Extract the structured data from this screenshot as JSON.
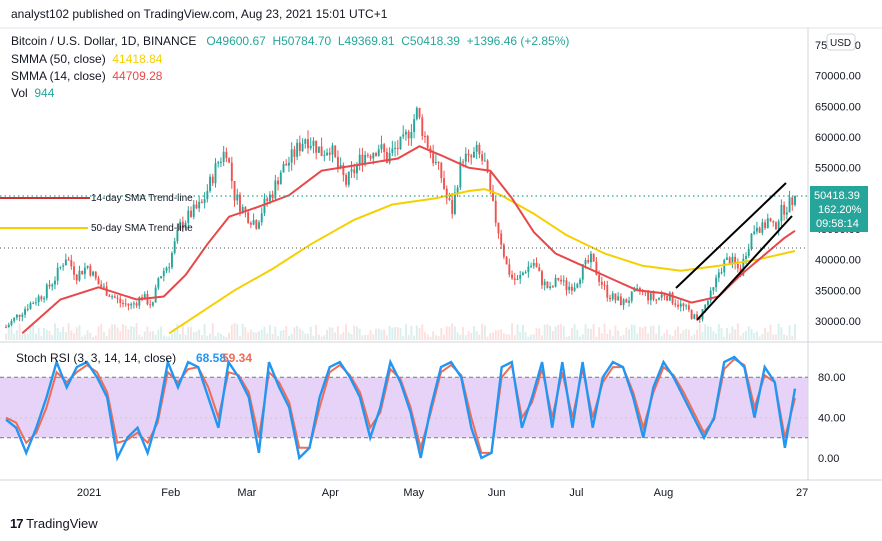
{
  "header": {
    "text": "analyst102 published on TradingView.com, Aug 23, 2021 15:01 UTC+1"
  },
  "symbol": {
    "title": "Bitcoin / U.S. Dollar, 1D, BINANCE",
    "open": "O49600.67",
    "high": "H50784.70",
    "low": "L49369.81",
    "close": "C50418.39",
    "change": "+1396.46 (+2.85%)"
  },
  "indicators": {
    "sma50": {
      "label": "SMMA (50, close)",
      "value": "41418.84",
      "color": "#f5d000"
    },
    "sma14": {
      "label": "SMMA (14, close)",
      "value": "44709.28",
      "color": "#e8484a"
    },
    "vol": {
      "label": "Vol",
      "value": "944"
    }
  },
  "currency_button": "USD",
  "price_tag": {
    "price": "50418.39",
    "pct": "162.20%",
    "timer": "09:58:14",
    "color": "#26a69a"
  },
  "annotations": {
    "trend14": "14-day SMA Trend-line",
    "trend50": "50-day SMA Trend-line"
  },
  "stoch": {
    "label": "Stoch RSI (3, 3, 14, 14, close)",
    "k_value": "68.58",
    "d_value": "59.34",
    "k_color": "#2196f3",
    "d_color": "#ef6c57",
    "band_color": "#e1c8f5"
  },
  "branding": "TradingView",
  "chart_data": [
    {
      "type": "candlestick",
      "title": "Bitcoin / U.S. Dollar, 1D, BINANCE",
      "y_ticks": [
        "75000.00",
        "70000.00",
        "65000.00",
        "60000.00",
        "55000.00",
        "45000.00",
        "40000.00",
        "35000.00",
        "30000.00"
      ],
      "ylim": [
        28000,
        77000
      ],
      "x_ticks": [
        "2021",
        "Feb",
        "Mar",
        "Apr",
        "May",
        "Jun",
        "Jul",
        "Aug",
        "27"
      ],
      "last_close": 50418.39,
      "series": [
        {
          "name": "SMMA (14, close)",
          "last": 44709.28
        },
        {
          "name": "SMMA (50, close)",
          "last": 41418.84
        }
      ],
      "close_path": [
        [
          0,
          29000
        ],
        [
          8,
          32500
        ],
        [
          14,
          34500
        ],
        [
          18,
          37000
        ],
        [
          22,
          40500
        ],
        [
          26,
          37500
        ],
        [
          30,
          39000
        ],
        [
          34,
          36000
        ],
        [
          38,
          34500
        ],
        [
          42,
          33000
        ],
        [
          46,
          32500
        ],
        [
          50,
          34000
        ],
        [
          54,
          32500
        ],
        [
          56,
          37000
        ],
        [
          60,
          39500
        ],
        [
          64,
          45500
        ],
        [
          68,
          47500
        ],
        [
          72,
          49000
        ],
        [
          75,
          52500
        ],
        [
          78,
          56000
        ],
        [
          81,
          58000
        ],
        [
          84,
          50500
        ],
        [
          88,
          47500
        ],
        [
          92,
          46000
        ],
        [
          95,
          49000
        ],
        [
          98,
          51000
        ],
        [
          101,
          54500
        ],
        [
          104,
          56000
        ],
        [
          107,
          58000
        ],
        [
          110,
          60000
        ],
        [
          113,
          59000
        ],
        [
          116,
          57500
        ],
        [
          119,
          58500
        ],
        [
          122,
          55000
        ],
        [
          125,
          52500
        ],
        [
          128,
          54500
        ],
        [
          131,
          57000
        ],
        [
          134,
          57500
        ],
        [
          137,
          58500
        ],
        [
          140,
          56500
        ],
        [
          143,
          58000
        ],
        [
          146,
          59000
        ],
        [
          149,
          62000
        ],
        [
          151,
          64000
        ],
        [
          154,
          60000
        ],
        [
          157,
          56500
        ],
        [
          160,
          53500
        ],
        [
          162,
          50000
        ],
        [
          164,
          48000
        ],
        [
          166,
          53000
        ],
        [
          168,
          57000
        ],
        [
          170,
          56000
        ],
        [
          173,
          57500
        ],
        [
          176,
          55500
        ],
        [
          178,
          50500
        ],
        [
          180,
          46500
        ],
        [
          182,
          43000
        ],
        [
          184,
          39000
        ],
        [
          186,
          37000
        ],
        [
          188,
          36500
        ],
        [
          191,
          38500
        ],
        [
          194,
          39500
        ],
        [
          197,
          36500
        ],
        [
          200,
          35000
        ],
        [
          203,
          37000
        ],
        [
          206,
          35500
        ],
        [
          209,
          36000
        ],
        [
          212,
          38500
        ],
        [
          215,
          40000
        ],
        [
          218,
          37000
        ],
        [
          221,
          34500
        ],
        [
          224,
          33500
        ],
        [
          227,
          33000
        ],
        [
          230,
          34000
        ],
        [
          233,
          35000
        ],
        [
          236,
          34000
        ],
        [
          239,
          33500
        ],
        [
          242,
          34500
        ],
        [
          245,
          33500
        ],
        [
          248,
          32500
        ],
        [
          251,
          31500
        ],
        [
          254,
          30000
        ],
        [
          257,
          32500
        ],
        [
          260,
          35000
        ],
        [
          262,
          38000
        ],
        [
          264,
          39500
        ],
        [
          266,
          40000
        ],
        [
          268,
          39000
        ],
        [
          270,
          38000
        ],
        [
          272,
          41500
        ],
        [
          274,
          44000
        ],
        [
          276,
          46000
        ],
        [
          278,
          45000
        ],
        [
          280,
          46500
        ],
        [
          282,
          45000
        ],
        [
          284,
          47000
        ],
        [
          286,
          48500
        ],
        [
          288,
          49000
        ],
        [
          290,
          50418
        ]
      ],
      "sma14_path": [
        [
          6,
          28000
        ],
        [
          20,
          33500
        ],
        [
          34,
          35500
        ],
        [
          48,
          33500
        ],
        [
          58,
          34000
        ],
        [
          66,
          37500
        ],
        [
          74,
          42500
        ],
        [
          82,
          47000
        ],
        [
          92,
          48500
        ],
        [
          104,
          50500
        ],
        [
          116,
          54500
        ],
        [
          130,
          55500
        ],
        [
          144,
          56500
        ],
        [
          152,
          58500
        ],
        [
          160,
          57000
        ],
        [
          170,
          55000
        ],
        [
          178,
          54500
        ],
        [
          186,
          50000
        ],
        [
          194,
          44500
        ],
        [
          202,
          41000
        ],
        [
          212,
          39000
        ],
        [
          222,
          37000
        ],
        [
          232,
          35000
        ],
        [
          242,
          34500
        ],
        [
          252,
          33000
        ],
        [
          262,
          34000
        ],
        [
          270,
          37500
        ],
        [
          278,
          40500
        ],
        [
          286,
          43500
        ],
        [
          290,
          44709
        ]
      ],
      "sma50_path": [
        [
          60,
          28000
        ],
        [
          72,
          31500
        ],
        [
          84,
          35000
        ],
        [
          98,
          38500
        ],
        [
          112,
          42500
        ],
        [
          128,
          46500
        ],
        [
          142,
          49000
        ],
        [
          158,
          50000
        ],
        [
          170,
          51200
        ],
        [
          176,
          51500
        ],
        [
          182,
          50500
        ],
        [
          194,
          47500
        ],
        [
          206,
          44000
        ],
        [
          220,
          41000
        ],
        [
          234,
          39000
        ],
        [
          248,
          38200
        ],
        [
          262,
          39000
        ],
        [
          276,
          40000
        ],
        [
          290,
          41418
        ]
      ]
    },
    {
      "type": "line",
      "title": "Stoch RSI (3, 3, 14, 14, close)",
      "y_ticks": [
        "80.00",
        "40.00",
        "0.00"
      ],
      "ylim": [
        -10,
        105
      ],
      "bands": [
        20,
        80
      ],
      "series": [
        {
          "name": "K",
          "last": 68.58,
          "values": [
            38,
            30,
            5,
            30,
            60,
            95,
            70,
            90,
            95,
            80,
            60,
            0,
            20,
            30,
            5,
            40,
            95,
            70,
            95,
            90,
            60,
            30,
            95,
            80,
            60,
            5,
            95,
            70,
            50,
            0,
            10,
            60,
            90,
            95,
            80,
            60,
            20,
            50,
            95,
            75,
            45,
            0,
            50,
            90,
            95,
            80,
            30,
            0,
            5,
            90,
            95,
            30,
            60,
            95,
            30,
            95,
            30,
            95,
            30,
            80,
            95,
            90,
            60,
            20,
            70,
            95,
            80,
            60,
            40,
            20,
            40,
            95,
            100,
            90,
            40,
            90,
            75,
            10,
            68.58
          ]
        },
        {
          "name": "D",
          "last": 59.34,
          "values": [
            40,
            35,
            15,
            25,
            50,
            85,
            75,
            85,
            92,
            85,
            65,
            15,
            18,
            25,
            15,
            35,
            85,
            75,
            88,
            90,
            70,
            40,
            85,
            82,
            65,
            20,
            85,
            75,
            55,
            10,
            10,
            50,
            85,
            92,
            82,
            65,
            30,
            45,
            88,
            78,
            50,
            10,
            45,
            85,
            92,
            82,
            40,
            5,
            5,
            80,
            92,
            40,
            55,
            88,
            40,
            85,
            40,
            88,
            40,
            75,
            90,
            90,
            65,
            30,
            65,
            90,
            82,
            65,
            45,
            25,
            38,
            88,
            98,
            92,
            50,
            82,
            75,
            20,
            59.34
          ]
        }
      ]
    }
  ]
}
